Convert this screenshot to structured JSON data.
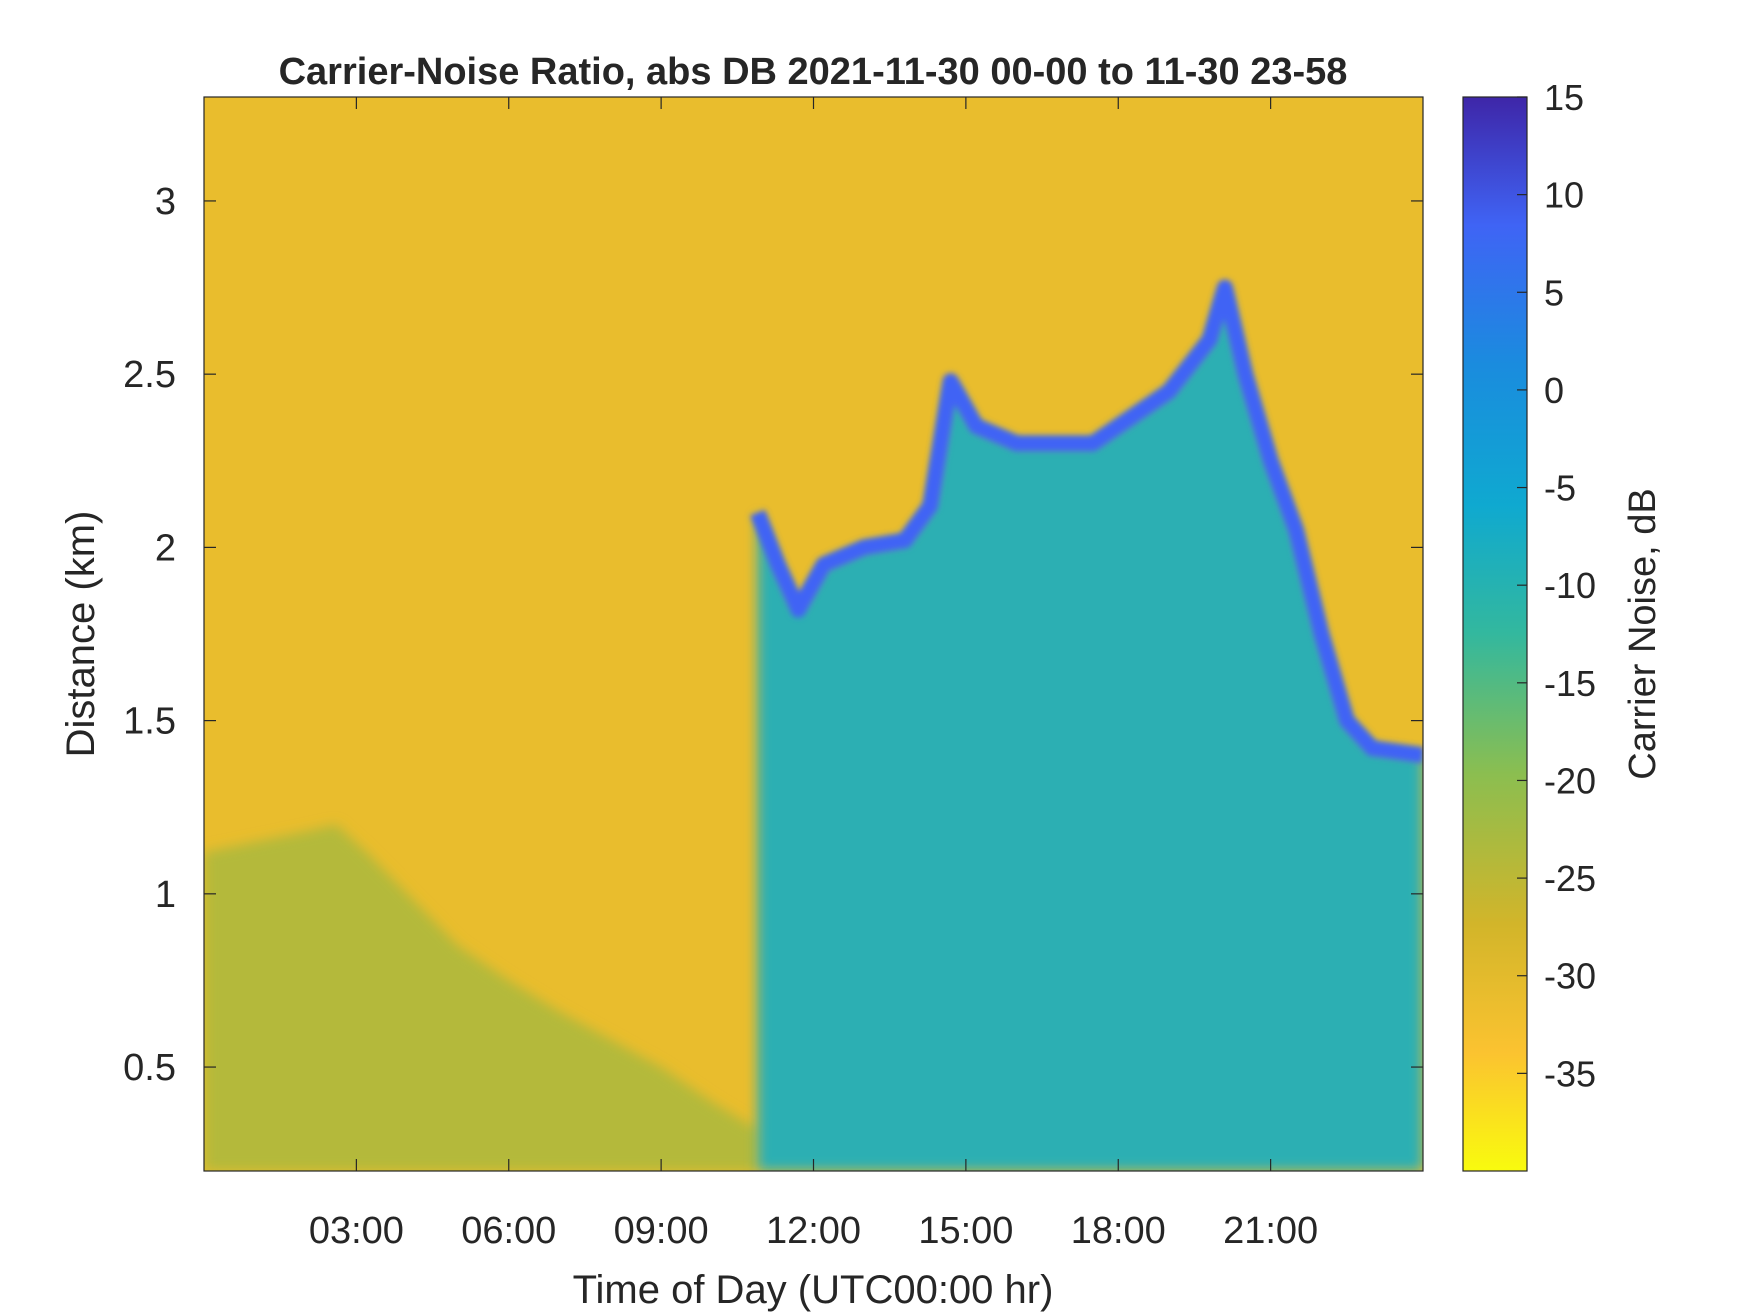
{
  "chart_data": {
    "type": "heatmap",
    "title": "Carrier-Noise Ratio, abs DB 2021-11-30 00-00 to 11-30 23-58",
    "xlabel": "Time of Day (UTC00:00 hr)",
    "ylabel": "Distance (km)",
    "xlim_hours": [
      0,
      24
    ],
    "ylim_km": [
      0.2,
      3.3
    ],
    "x_ticks": [
      {
        "hour": 3,
        "label": "03:00"
      },
      {
        "hour": 6,
        "label": "06:00"
      },
      {
        "hour": 9,
        "label": "09:00"
      },
      {
        "hour": 12,
        "label": "12:00"
      },
      {
        "hour": 15,
        "label": "15:00"
      },
      {
        "hour": 18,
        "label": "18:00"
      },
      {
        "hour": 21,
        "label": "21:00"
      }
    ],
    "y_ticks": [
      {
        "km": 0.5,
        "label": "0.5"
      },
      {
        "km": 1,
        "label": "1"
      },
      {
        "km": 1.5,
        "label": "1.5"
      },
      {
        "km": 2,
        "label": "2"
      },
      {
        "km": 2.5,
        "label": "2.5"
      },
      {
        "km": 3,
        "label": "3"
      }
    ],
    "colorbar": {
      "label": "Carrier Noise, dB",
      "clim": [
        -40,
        15
      ],
      "colormap": "parula",
      "ticks": [
        {
          "value": 15,
          "label": "15"
        },
        {
          "value": 10,
          "label": "10"
        },
        {
          "value": 5,
          "label": "5"
        },
        {
          "value": 0,
          "label": "0"
        },
        {
          "value": -5,
          "label": "-5"
        },
        {
          "value": -10,
          "label": "-10"
        },
        {
          "value": -15,
          "label": "-15"
        },
        {
          "value": -20,
          "label": "-20"
        },
        {
          "value": -25,
          "label": "-25"
        },
        {
          "value": -30,
          "label": "-30"
        },
        {
          "value": -35,
          "label": "-35"
        }
      ]
    },
    "background_dB": -31,
    "features": [
      {
        "kind": "boundary_layer",
        "hours": [
          0,
          10.9
        ],
        "top_km_points": [
          [
            0,
            1.12
          ],
          [
            1,
            1.15
          ],
          [
            2,
            1.18
          ],
          [
            2.6,
            1.2
          ],
          [
            3.2,
            1.12
          ],
          [
            4,
            1.0
          ],
          [
            5,
            0.85
          ],
          [
            6,
            0.75
          ],
          [
            7,
            0.66
          ],
          [
            8,
            0.58
          ],
          [
            9,
            0.5
          ],
          [
            10,
            0.4
          ],
          [
            10.9,
            0.32
          ]
        ],
        "value_dB": -24
      },
      {
        "kind": "cloud_layer",
        "hours": [
          10.9,
          24
        ],
        "base_km_points": [
          [
            10.9,
            2.1
          ],
          [
            11.3,
            1.95
          ],
          [
            11.7,
            1.82
          ],
          [
            12.2,
            1.95
          ],
          [
            13,
            2.0
          ],
          [
            13.8,
            2.02
          ],
          [
            14.3,
            2.12
          ],
          [
            14.7,
            2.48
          ],
          [
            15.2,
            2.35
          ],
          [
            16,
            2.3
          ],
          [
            17.5,
            2.3
          ],
          [
            19,
            2.45
          ],
          [
            19.8,
            2.6
          ],
          [
            20.1,
            2.75
          ],
          [
            20.5,
            2.5
          ],
          [
            21,
            2.25
          ],
          [
            21.5,
            2.05
          ],
          [
            22,
            1.75
          ],
          [
            22.5,
            1.5
          ],
          [
            23,
            1.42
          ],
          [
            24,
            1.4
          ]
        ],
        "value_dB": 8
      },
      {
        "kind": "mixed_layer",
        "hours": [
          10.9,
          24
        ],
        "value_dB": -8
      }
    ]
  }
}
